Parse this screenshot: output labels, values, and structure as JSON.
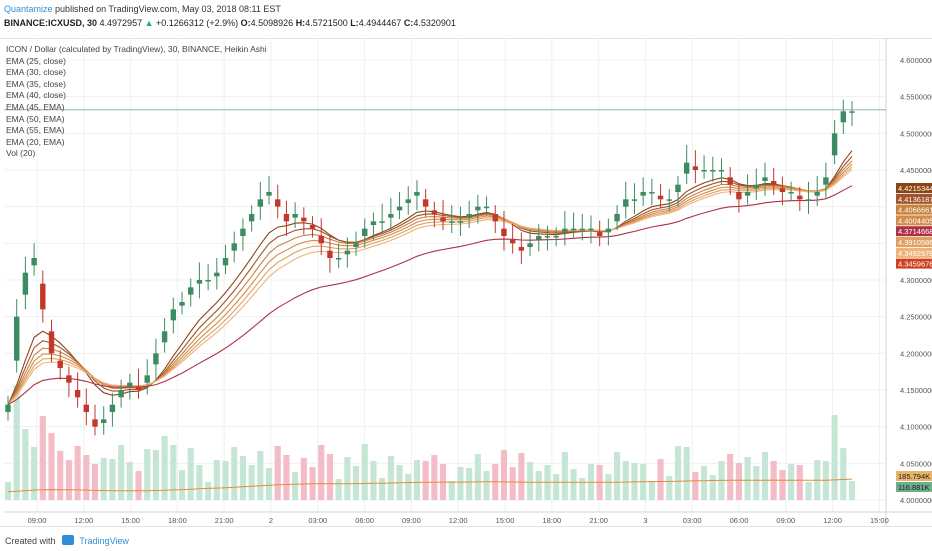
{
  "header": {
    "brand": "Quantamize",
    "published": "published on TradingView.com, May 03, 2018 08:11 EST",
    "symbol": "BINANCE:ICXUSD, 30",
    "last": "4.4972957",
    "change_arrow": "▲",
    "change": "+0.1266312 (+2.9%)",
    "open_label": "O:",
    "open": "4.5098926",
    "high_label": "H:",
    "high": "4.5721500",
    "low_label": "L:",
    "low": "4.4944467",
    "close_label": "C:",
    "close": "4.5320901"
  },
  "legend": {
    "title": "ICON / Dollar (calculated by TradingView), 30, BINANCE, Heikin Ashi",
    "items": [
      "EMA (25, close)",
      "EMA (30, close)",
      "EMA (35, close)",
      "EMA (40, close)",
      "EMA (45, EMA)",
      "EMA (50, EMA)",
      "EMA (55, EMA)",
      "EMA (20, EMA)",
      "Vol (20)"
    ]
  },
  "footer": {
    "created_with": "Created with",
    "tradingview": "TradingView"
  },
  "colors": {
    "up": "#3d8b62",
    "down": "#c0392b",
    "vol_up": "#c5e6d5",
    "vol_down": "#f3bcc6",
    "grid": "#eef0f3",
    "ema_dark": "#8b4513",
    "ema_mid": "#c8823e",
    "ema_light": "#f0b27a",
    "ema_red": "#b03048"
  },
  "chart_data": {
    "type": "candlestick",
    "ylim": [
      4.0,
      4.62
    ],
    "y_ticks": [
      "4.6000000",
      "4.5500000",
      "4.5000000",
      "4.4500000",
      "4.4000000",
      "4.3500000",
      "4.3000000",
      "4.2500000",
      "4.2000000",
      "4.1500000",
      "4.1000000",
      "4.0500000",
      "4.0000000"
    ],
    "x_ticks": [
      "09:00",
      "12:00",
      "15:00",
      "18:00",
      "21:00",
      "2",
      "03:00",
      "06:00",
      "09:00",
      "12:00",
      "15:00",
      "18:00",
      "21:00",
      "3",
      "03:00",
      "06:00",
      "09:00",
      "12:00",
      "15:00"
    ],
    "price_tags": [
      {
        "value": "4.4215344",
        "color": "#8b4513",
        "y": 4.4215
      },
      {
        "value": "4.4136187",
        "color": "#a0522d",
        "y": 4.4136
      },
      {
        "value": "4.4066661",
        "color": "#c8823e",
        "y": 4.4067
      },
      {
        "value": "4.4004405",
        "color": "#d48a4a",
        "y": 4.4004
      },
      {
        "value": "4.3714668",
        "color": "#b03048",
        "y": 4.3715
      },
      {
        "value": "4.3910586",
        "color": "#e0a060",
        "y": 4.3911
      },
      {
        "value": "4.3492578",
        "color": "#f0b27a",
        "y": 4.3493
      },
      {
        "value": "4.3459676",
        "color": "#d04020",
        "y": 4.346
      }
    ],
    "volume_tags": [
      "185.794K",
      "116.881K"
    ],
    "series": [
      {
        "name": "Heikin Ashi close",
        "values": [
          4.13,
          4.25,
          4.31,
          4.33,
          4.26,
          4.2,
          4.18,
          4.16,
          4.14,
          4.12,
          4.1,
          4.11,
          4.13,
          4.15,
          4.16,
          4.15,
          4.17,
          4.2,
          4.23,
          4.26,
          4.27,
          4.29,
          4.3,
          4.3,
          4.31,
          4.33,
          4.35,
          4.37,
          4.39,
          4.41,
          4.42,
          4.4,
          4.38,
          4.39,
          4.38,
          4.37,
          4.35,
          4.33,
          4.33,
          4.34,
          4.35,
          4.37,
          4.38,
          4.38,
          4.39,
          4.4,
          4.41,
          4.42,
          4.4,
          4.39,
          4.38,
          4.38,
          4.38,
          4.39,
          4.4,
          4.4,
          4.38,
          4.36,
          4.35,
          4.34,
          4.35,
          4.36,
          4.36,
          4.36,
          4.37,
          4.37,
          4.37,
          4.37,
          4.36,
          4.37,
          4.39,
          4.41,
          4.41,
          4.42,
          4.42,
          4.41,
          4.41,
          4.43,
          4.46,
          4.45,
          4.45,
          4.45,
          4.45,
          4.43,
          4.41,
          4.42,
          4.43,
          4.44,
          4.43,
          4.42,
          4.42,
          4.41,
          4.41,
          4.42,
          4.44,
          4.5,
          4.53,
          4.53
        ]
      }
    ]
  }
}
